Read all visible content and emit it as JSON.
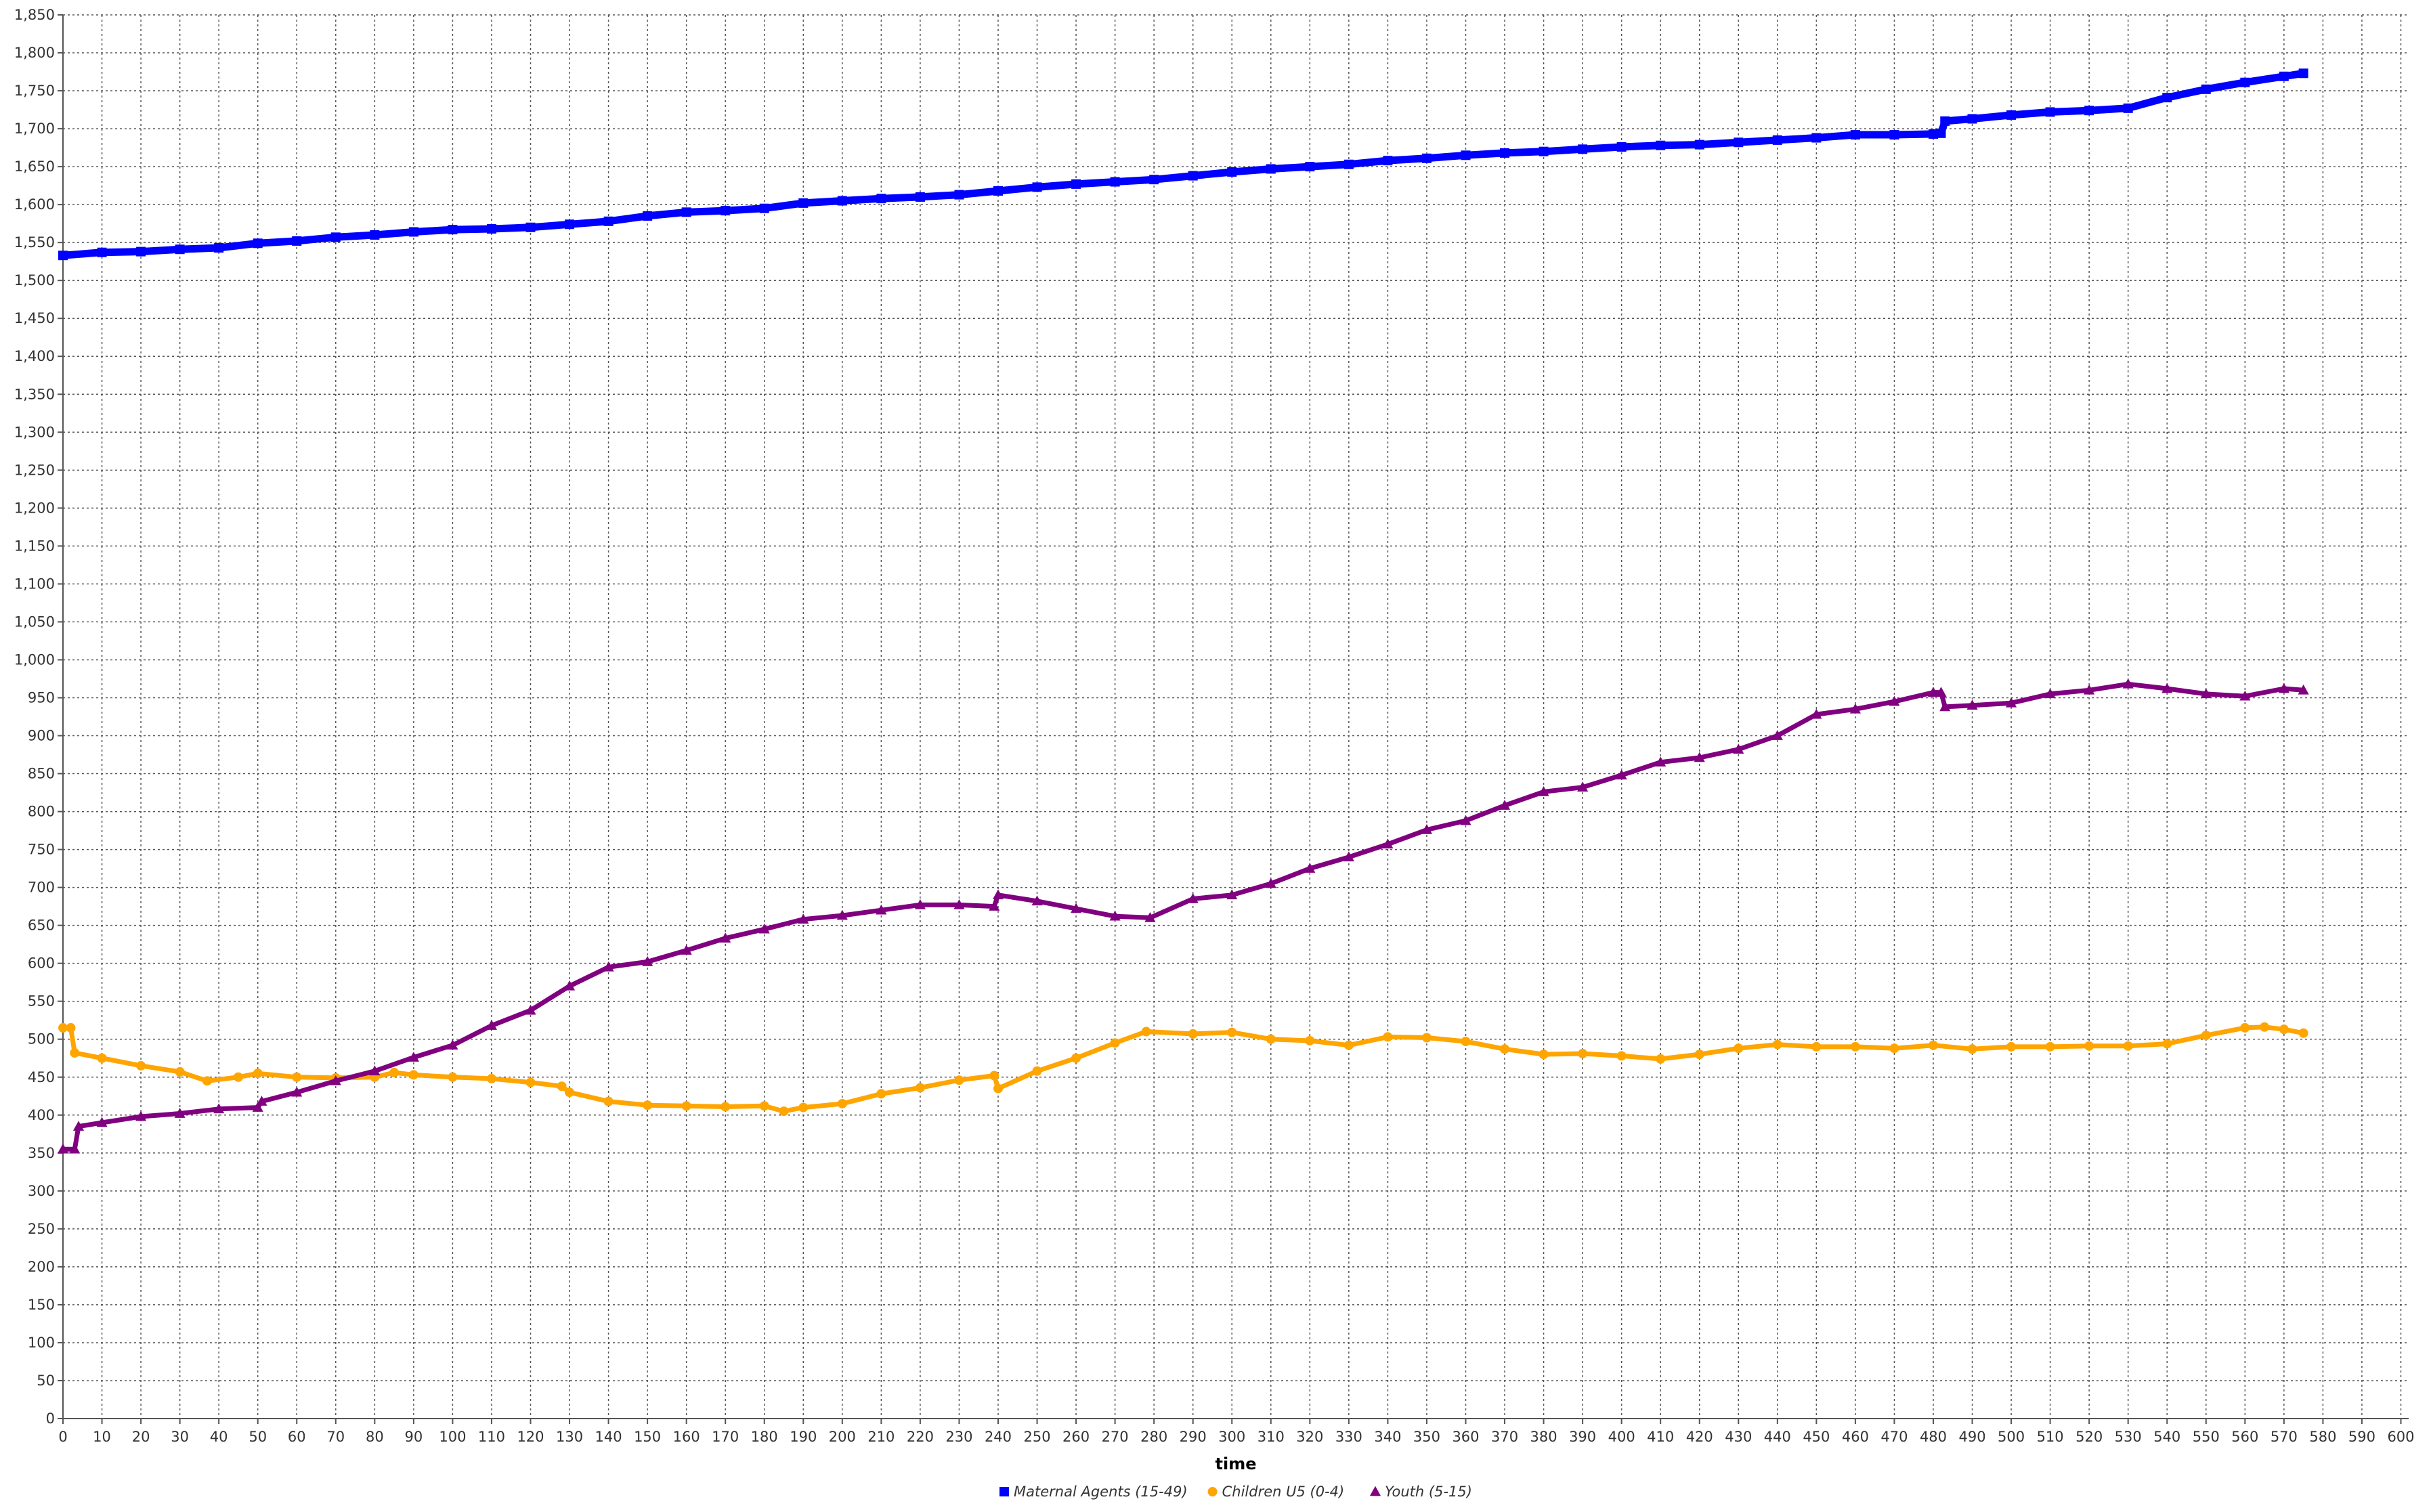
{
  "chart_data": {
    "type": "line",
    "title": "",
    "xlabel": "time",
    "ylabel": "",
    "xlim": [
      0,
      602
    ],
    "ylim": [
      0,
      1850
    ],
    "x_ticks": [
      0,
      10,
      20,
      30,
      40,
      50,
      60,
      70,
      80,
      90,
      100,
      110,
      120,
      130,
      140,
      150,
      160,
      170,
      180,
      190,
      200,
      210,
      220,
      230,
      240,
      250,
      260,
      270,
      280,
      290,
      300,
      310,
      320,
      330,
      340,
      350,
      360,
      370,
      380,
      390,
      400,
      410,
      420,
      430,
      440,
      450,
      460,
      470,
      480,
      490,
      500,
      510,
      520,
      530,
      540,
      550,
      560,
      570,
      580,
      590,
      600
    ],
    "x_tick_labels": [
      "0",
      "10",
      "20",
      "30",
      "40",
      "50",
      "60",
      "70",
      "80",
      "90",
      "100",
      "110",
      "120",
      "130",
      "140",
      "150",
      "160",
      "170",
      "180",
      "190",
      "200",
      "210",
      "220",
      "230",
      "240",
      "250",
      "260",
      "270",
      "280",
      "290",
      "300",
      "310",
      "320",
      "330",
      "340",
      "350",
      "360",
      "370",
      "380",
      "390",
      "400",
      "410",
      "420",
      "430",
      "440",
      "450",
      "460",
      "470",
      "480",
      "490",
      "500",
      "510",
      "520",
      "530",
      "540",
      "550",
      "560",
      "570",
      "580",
      "590",
      "600"
    ],
    "y_ticks": [
      0,
      50,
      100,
      150,
      200,
      250,
      300,
      350,
      400,
      450,
      500,
      550,
      600,
      650,
      700,
      750,
      800,
      850,
      900,
      950,
      1000,
      1050,
      1100,
      1150,
      1200,
      1250,
      1300,
      1350,
      1400,
      1450,
      1500,
      1550,
      1600,
      1650,
      1700,
      1750,
      1800,
      1850
    ],
    "y_tick_labels": [
      "0",
      "50",
      "100",
      "150",
      "200",
      "250",
      "300",
      "350",
      "400",
      "450",
      "500",
      "550",
      "600",
      "650",
      "700",
      "750",
      "800",
      "850",
      "900",
      "950",
      "1,000",
      "1,050",
      "1,100",
      "1,150",
      "1,200",
      "1,250",
      "1,300",
      "1,350",
      "1,400",
      "1,450",
      "1,500",
      "1,550",
      "1,600",
      "1,650",
      "1,700",
      "1,750",
      "1,800",
      "1,850"
    ],
    "grid": true,
    "legend_position": "bottom-center",
    "series": [
      {
        "name": "Maternal Agents (15-49)",
        "color": "#0000ff",
        "marker": "square",
        "x": [
          0,
          10,
          20,
          30,
          40,
          50,
          60,
          70,
          80,
          90,
          100,
          110,
          120,
          130,
          140,
          150,
          160,
          170,
          180,
          190,
          200,
          210,
          220,
          230,
          240,
          250,
          260,
          270,
          280,
          290,
          300,
          310,
          320,
          330,
          340,
          350,
          360,
          370,
          380,
          390,
          400,
          410,
          420,
          430,
          440,
          450,
          460,
          470,
          480,
          482,
          483,
          490,
          500,
          510,
          520,
          530,
          540,
          550,
          560,
          570,
          575
        ],
        "y": [
          1533,
          1537,
          1538,
          1541,
          1543,
          1549,
          1552,
          1557,
          1560,
          1564,
          1567,
          1568,
          1570,
          1574,
          1578,
          1585,
          1590,
          1592,
          1595,
          1602,
          1605,
          1608,
          1610,
          1613,
          1618,
          1623,
          1627,
          1630,
          1633,
          1638,
          1643,
          1647,
          1650,
          1653,
          1658,
          1661,
          1665,
          1668,
          1670,
          1673,
          1676,
          1678,
          1679,
          1682,
          1685,
          1688,
          1692,
          1692,
          1693,
          1694,
          1710,
          1713,
          1718,
          1722,
          1724,
          1727,
          1741,
          1752,
          1761,
          1769,
          1773
        ]
      },
      {
        "name": "Children U5 (0-4)",
        "color": "#ffa500",
        "marker": "circle",
        "x": [
          0,
          2,
          3,
          10,
          20,
          30,
          37,
          45,
          50,
          60,
          70,
          80,
          85,
          90,
          100,
          110,
          120,
          128,
          130,
          140,
          150,
          160,
          170,
          180,
          185,
          190,
          200,
          210,
          220,
          230,
          239,
          240,
          250,
          260,
          270,
          278,
          290,
          300,
          310,
          320,
          330,
          340,
          350,
          360,
          370,
          380,
          390,
          400,
          410,
          420,
          430,
          440,
          450,
          460,
          470,
          480,
          490,
          500,
          510,
          520,
          530,
          540,
          550,
          560,
          565,
          570,
          575
        ],
        "y": [
          515,
          515,
          482,
          475,
          465,
          457,
          445,
          450,
          455,
          450,
          449,
          450,
          456,
          453,
          450,
          448,
          443,
          438,
          430,
          418,
          413,
          412,
          411,
          412,
          405,
          410,
          415,
          428,
          436,
          446,
          452,
          435,
          458,
          475,
          495,
          510,
          507,
          509,
          500,
          498,
          492,
          503,
          502,
          497,
          487,
          480,
          481,
          478,
          474,
          480,
          488,
          493,
          490,
          490,
          488,
          492,
          487,
          490,
          490,
          491,
          491,
          494,
          505,
          515,
          516,
          513,
          508
        ]
      },
      {
        "name": "Youth (5-15)",
        "color": "#800080",
        "marker": "triangle",
        "x": [
          0,
          3,
          4,
          10,
          20,
          30,
          40,
          50,
          51,
          60,
          70,
          80,
          90,
          100,
          110,
          120,
          130,
          140,
          150,
          160,
          170,
          180,
          190,
          200,
          210,
          220,
          230,
          239,
          240,
          250,
          260,
          270,
          279,
          290,
          300,
          310,
          320,
          330,
          340,
          350,
          360,
          370,
          380,
          390,
          400,
          410,
          420,
          430,
          440,
          450,
          460,
          470,
          480,
          482,
          483,
          490,
          500,
          510,
          520,
          530,
          540,
          550,
          560,
          570,
          575
        ],
        "y": [
          355,
          355,
          385,
          390,
          398,
          402,
          408,
          410,
          418,
          430,
          445,
          458,
          476,
          492,
          518,
          538,
          570,
          595,
          602,
          617,
          633,
          645,
          658,
          663,
          670,
          677,
          677,
          675,
          690,
          682,
          672,
          662,
          660,
          685,
          690,
          705,
          725,
          740,
          757,
          776,
          788,
          808,
          826,
          832,
          848,
          865,
          871,
          882,
          900,
          928,
          935,
          945,
          957,
          957,
          938,
          940,
          943,
          955,
          960,
          968,
          962,
          955,
          952,
          962,
          960
        ]
      }
    ]
  }
}
